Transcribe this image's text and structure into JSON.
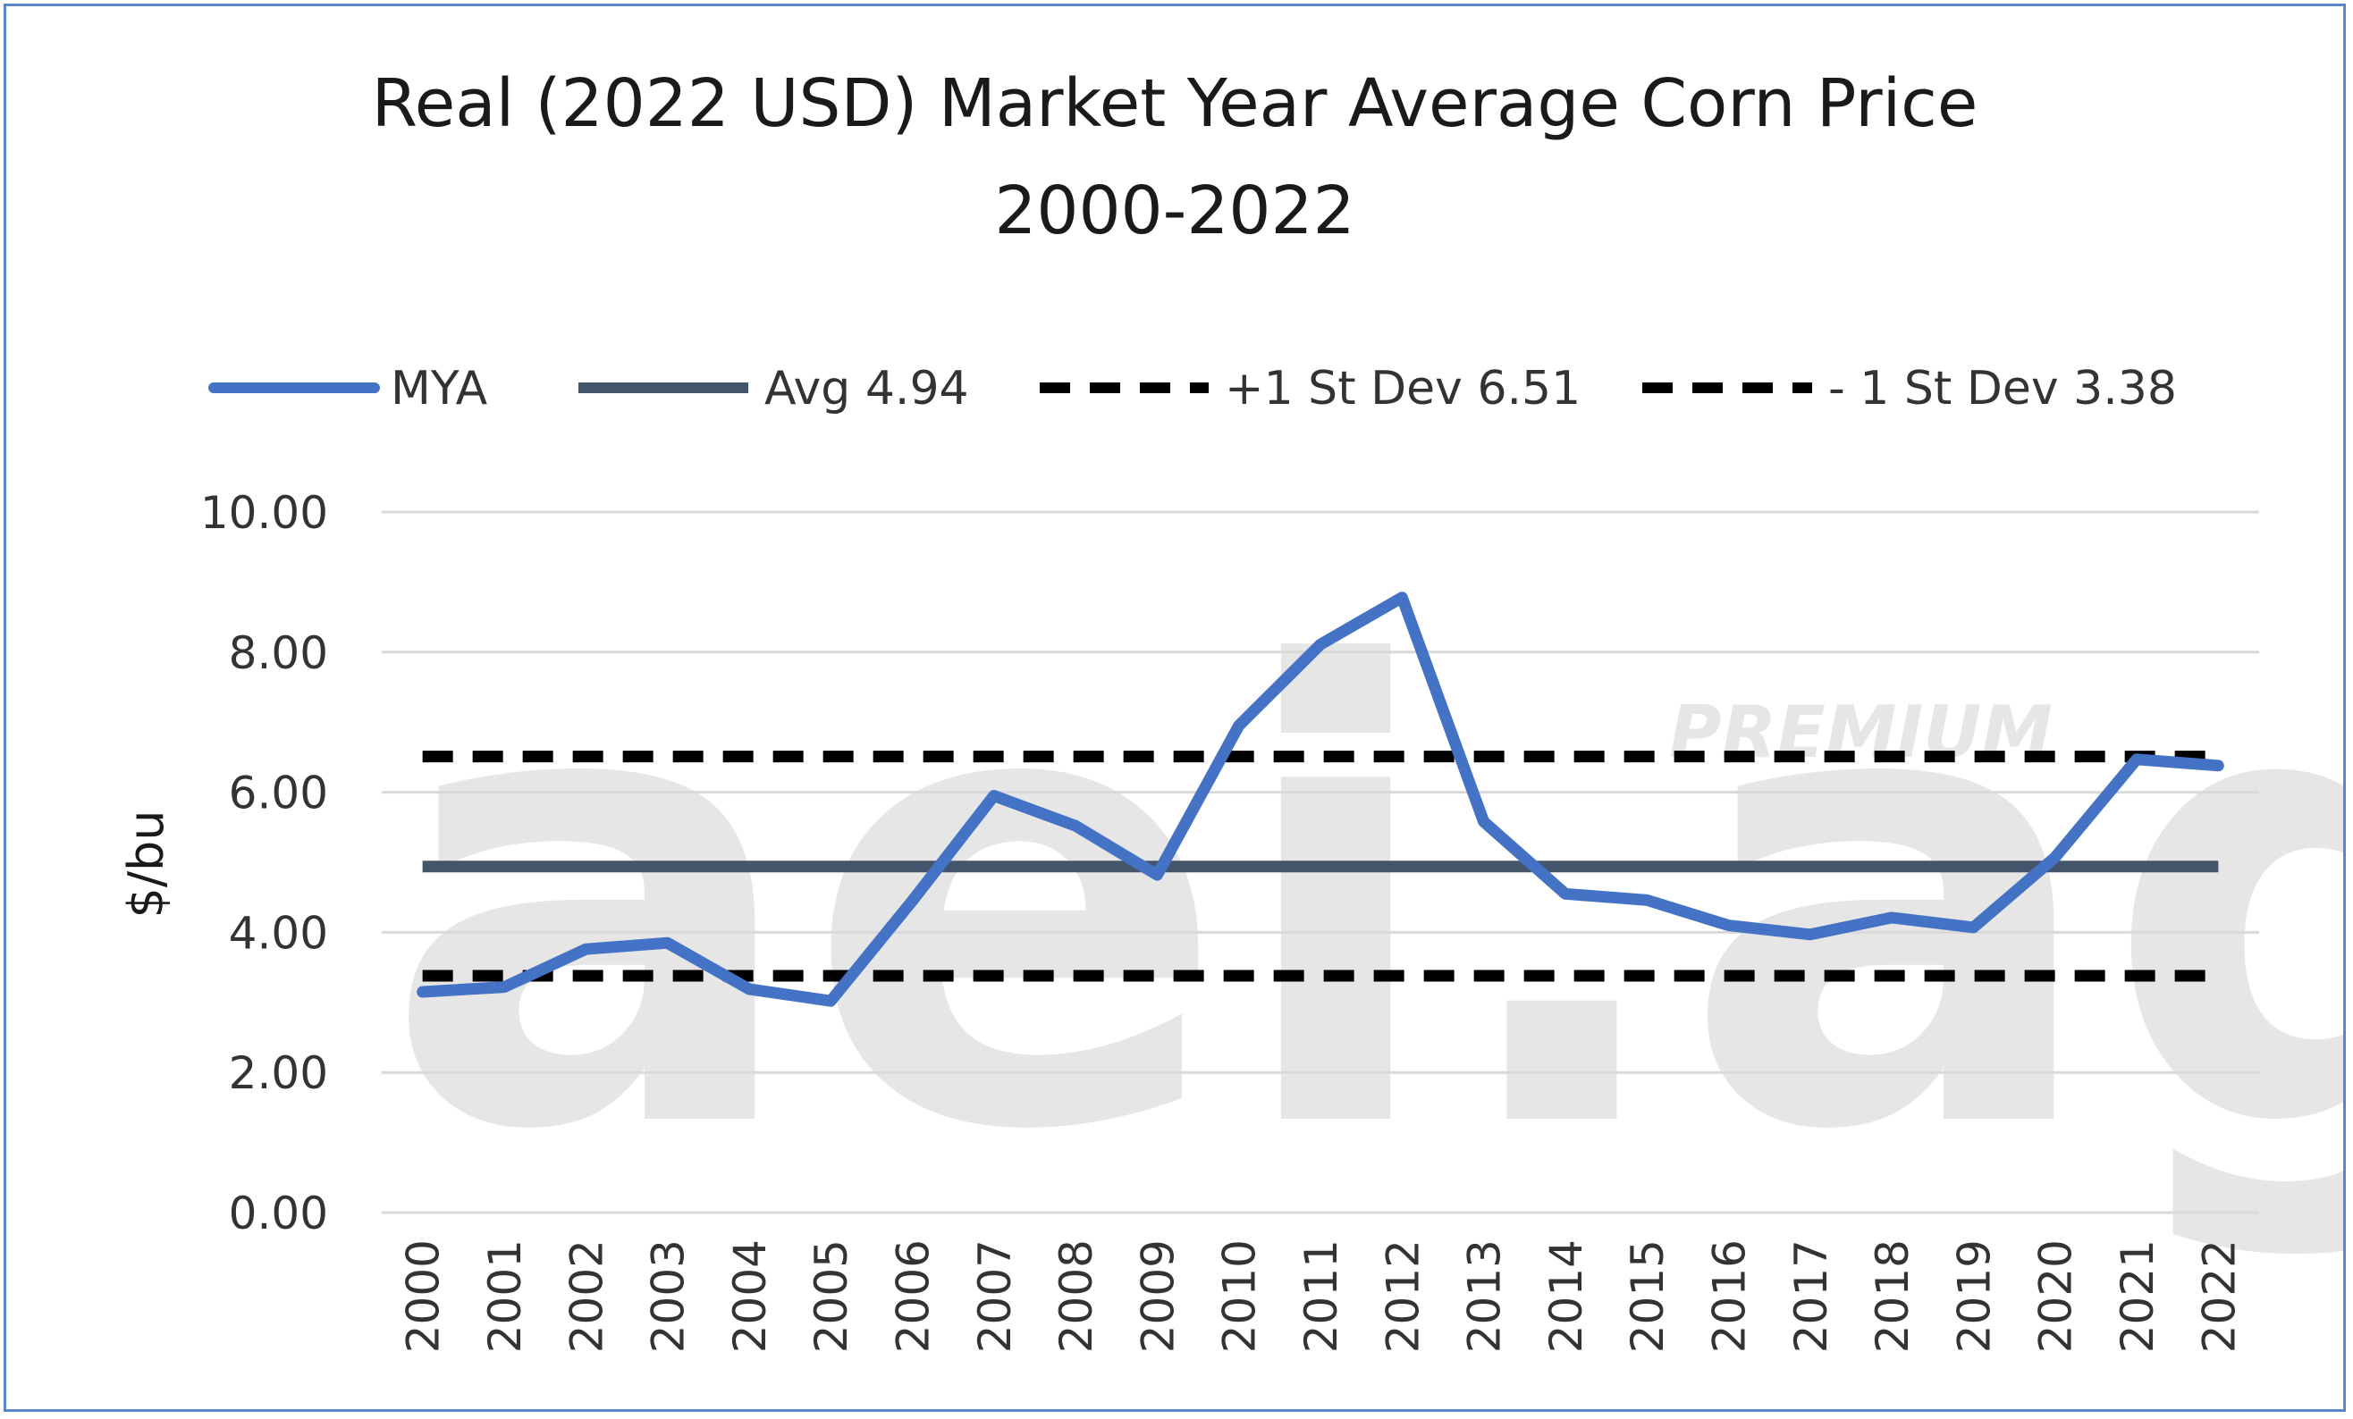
{
  "chart_data": {
    "type": "line",
    "title": "Real (2022 USD) Market Year Average Corn Price",
    "subtitle": "2000-2022",
    "xlabel": "",
    "ylabel": "$/bu",
    "ylim": [
      0,
      10
    ],
    "yticks": [
      "0.00",
      "2.00",
      "4.00",
      "6.00",
      "8.00",
      "10.00"
    ],
    "grid": true,
    "legend_position": "top",
    "categories": [
      "2000",
      "2001",
      "2002",
      "2003",
      "2004",
      "2005",
      "2006",
      "2007",
      "2008",
      "2009",
      "2010",
      "2011",
      "2012",
      "2013",
      "2014",
      "2015",
      "2016",
      "2017",
      "2018",
      "2019",
      "2020",
      "2021",
      "2022"
    ],
    "series": [
      {
        "name": "MYA",
        "style": "solid",
        "color": "#4472c4",
        "values": [
          3.15,
          3.22,
          3.76,
          3.85,
          3.19,
          3.02,
          4.45,
          5.95,
          5.52,
          4.82,
          6.95,
          8.11,
          8.78,
          5.58,
          4.55,
          4.46,
          4.1,
          3.97,
          4.21,
          4.07,
          5.07,
          6.47,
          6.38
        ]
      },
      {
        "name": "Avg 4.94",
        "style": "solid",
        "color": "#44546a",
        "constant": 4.94
      },
      {
        "name": "+1 St Dev 6.51",
        "style": "dashed",
        "color": "#000000",
        "constant": 6.51
      },
      {
        "name": "- 1 St Dev 3.38",
        "style": "dashed",
        "color": "#000000",
        "constant": 3.38
      }
    ]
  },
  "watermark": {
    "text": "aei.ag",
    "badge": "PREMIUM"
  }
}
